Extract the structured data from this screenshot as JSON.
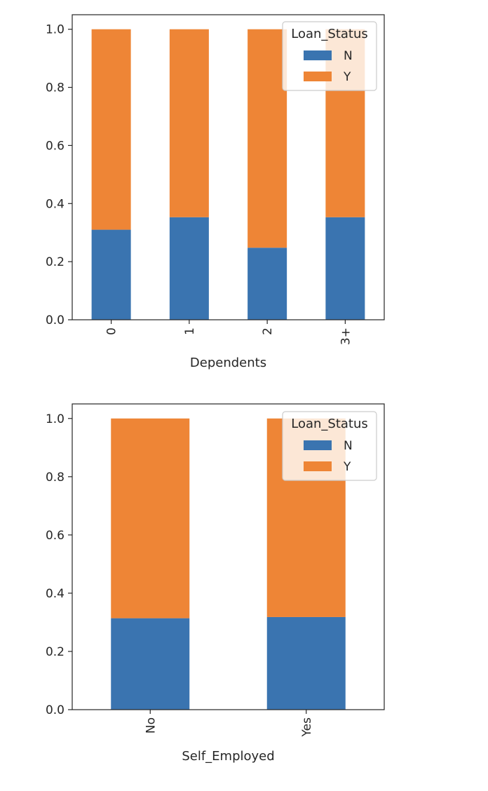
{
  "colors": {
    "N": "#3a74b0",
    "Y": "#ee8536",
    "axis": "#262626",
    "legend_border": "#cccccc",
    "legend_bg": "#ffffff"
  },
  "chart_data": [
    {
      "type": "bar",
      "stacked": true,
      "categories": [
        "0",
        "1",
        "2",
        "3+"
      ],
      "xlabel": "Dependents",
      "ylabel": "",
      "ylim": [
        0,
        1.05
      ],
      "yticks": [
        "0.0",
        "0.2",
        "0.4",
        "0.6",
        "0.8",
        "1.0"
      ],
      "grid": false,
      "legend": {
        "title": "Loan_Status",
        "placement": "top-right"
      },
      "series": [
        {
          "name": "N",
          "values": [
            0.31,
            0.353,
            0.248,
            0.353
          ]
        },
        {
          "name": "Y",
          "values": [
            0.69,
            0.647,
            0.752,
            0.647
          ]
        }
      ]
    },
    {
      "type": "bar",
      "stacked": true,
      "categories": [
        "No",
        "Yes"
      ],
      "xlabel": "Self_Employed",
      "ylabel": "",
      "ylim": [
        0,
        1.05
      ],
      "yticks": [
        "0.0",
        "0.2",
        "0.4",
        "0.6",
        "0.8",
        "1.0"
      ],
      "grid": false,
      "legend": {
        "title": "Loan_Status",
        "placement": "top-right"
      },
      "series": [
        {
          "name": "N",
          "values": [
            0.314,
            0.318
          ]
        },
        {
          "name": "Y",
          "values": [
            0.686,
            0.682
          ]
        }
      ]
    }
  ]
}
